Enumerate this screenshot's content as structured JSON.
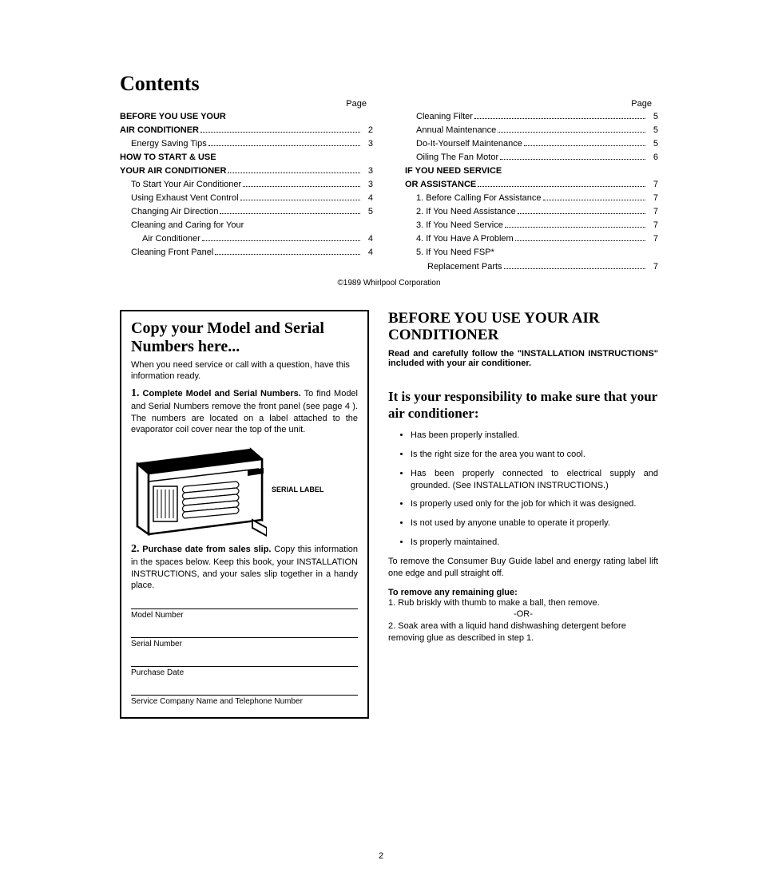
{
  "title": "Contents",
  "pageLabel": "Page",
  "toc": {
    "left": [
      {
        "label": "BEFORE YOU USE YOUR",
        "bold": true,
        "indent": 0,
        "nopage": true
      },
      {
        "label": "AIR CONDITIONER",
        "bold": true,
        "indent": 0,
        "page": "2"
      },
      {
        "label": "Energy Saving Tips",
        "indent": 1,
        "page": "3"
      },
      {
        "label": "HOW TO START & USE",
        "bold": true,
        "indent": 0,
        "nopage": true
      },
      {
        "label": "YOUR AIR CONDITIONER",
        "bold": true,
        "indent": 0,
        "page": "3"
      },
      {
        "label": "To Start Your Air Conditioner",
        "indent": 1,
        "page": "3"
      },
      {
        "label": "Using Exhaust Vent Control",
        "indent": 1,
        "page": "4"
      },
      {
        "label": "Changing Air Direction",
        "indent": 1,
        "page": "5"
      },
      {
        "label": "Cleaning and Caring for Your",
        "indent": 1,
        "nopage": true
      },
      {
        "label": "Air Conditioner",
        "indent": 2,
        "page": "4"
      },
      {
        "label": "Cleaning Front Panel",
        "indent": 1,
        "page": "4"
      }
    ],
    "right": [
      {
        "label": "Cleaning Filter",
        "indent": 1,
        "page": "5"
      },
      {
        "label": "Annual Maintenance",
        "indent": 1,
        "page": "5"
      },
      {
        "label": "Do-It-Yourself Maintenance",
        "indent": 1,
        "page": "5"
      },
      {
        "label": "Oiling The Fan Motor",
        "indent": 1,
        "page": "6"
      },
      {
        "label": "IF YOU NEED SERVICE",
        "bold": true,
        "indent": 0,
        "nopage": true
      },
      {
        "label": "OR ASSISTANCE",
        "bold": true,
        "indent": 0,
        "page": "7"
      },
      {
        "label": "1. Before Calling For Assistance",
        "indent": 1,
        "page": "7"
      },
      {
        "label": "2. If You Need Assistance",
        "indent": 1,
        "page": "7"
      },
      {
        "label": "3. If You Need Service",
        "indent": 1,
        "page": "7"
      },
      {
        "label": "4. If You Have A Problem",
        "indent": 1,
        "page": "7"
      },
      {
        "label": "5. If You Need FSP*",
        "indent": 1,
        "nopage": true
      },
      {
        "label": "Replacement Parts",
        "indent": 2,
        "page": "7"
      }
    ]
  },
  "copyright": "©1989 Whirlpool Corporation",
  "modelBox": {
    "title": "Copy your Model and Serial Numbers here...",
    "intro": "When you need service or call with a question, have this information ready.",
    "item1num": "1.",
    "item1lead": "Complete Model and Serial Numbers.",
    "item1body": "To find Model and Serial Numbers remove the front panel (see page 4 ). The numbers are located on a label attached to the evaporator coil cover near the top of the unit.",
    "diagramLabel": "SERIAL LABEL",
    "item2num": "2.",
    "item2lead": "Purchase date from sales slip.",
    "item2body": "Copy this information in the spaces below. Keep this book, your INSTALLATION INSTRUCTIONS, and your sales slip together in a handy place.",
    "fields": [
      "Model Number",
      "Serial Number",
      "Purchase Date",
      "Service Company Name and Telephone Number"
    ]
  },
  "before": {
    "title": "BEFORE YOU USE YOUR AIR CONDITIONER",
    "intro": "Read and carefully follow the \"INSTALLATION INSTRUCTIONS\" included with your air conditioner.",
    "subtitle": "It is your responsibility to make sure that your air conditioner:",
    "bullets": [
      "Has been properly installed.",
      "Is the right size for the area you want to cool.",
      "Has been properly connected to electrical supply and grounded. (See INSTALLATION INSTRUCTIONS.)",
      "Is properly used only for the job for which it was designed.",
      "Is not used by anyone unable to operate it properly.",
      "Is properly maintained."
    ],
    "removePara": "To remove the Consumer Buy Guide label and energy rating label lift one edge and pull straight off.",
    "glueTitle": "To remove any remaining glue:",
    "glue1": "1. Rub briskly with thumb to make a ball, then remove.",
    "or": "-OR-",
    "glue2": "2. Soak area with a liquid hand dishwashing detergent before removing glue as described in step 1."
  },
  "pageNumber": "2"
}
